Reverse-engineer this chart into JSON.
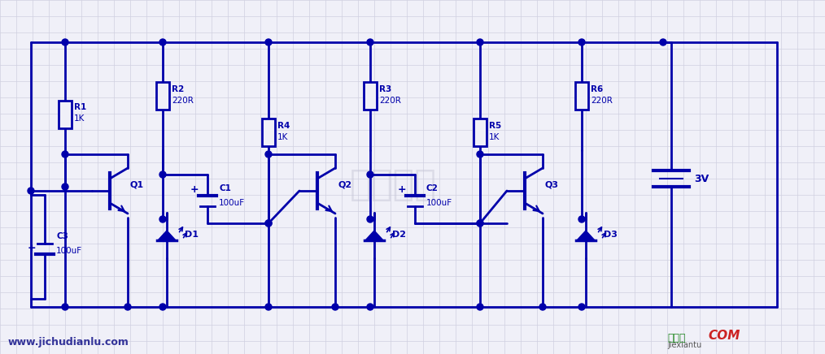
{
  "bg_color": "#f0f0f8",
  "grid_color": "#d0d0e0",
  "circuit_color": "#0000aa",
  "title_color": "#0000aa",
  "watermark_color": "#c8c8d8",
  "watermark_text": "电子爱好",
  "url_text": "www.jichudianlu.com",
  "logo_text1": "接线图",
  "logo_text2": "jiexiantu",
  "logo_color1": "#228822",
  "logo_color2": "#cc2222",
  "battery_voltage": "3V",
  "components": {
    "R1": "1K",
    "R2": "220R",
    "R3": "220R",
    "R4": "1K",
    "R5": "1K",
    "R6": "220R",
    "C1": "100uF",
    "C2": "100uF",
    "C3": "100uF",
    "Q1": "Q1",
    "Q2": "Q2",
    "Q3": "Q3",
    "D1": "D1",
    "D2": "D2",
    "D3": "D3"
  }
}
